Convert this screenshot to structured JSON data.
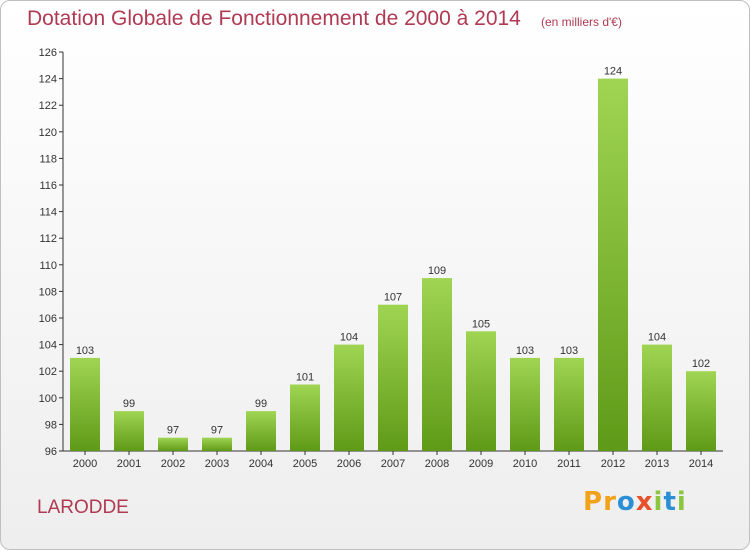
{
  "title": "Dotation Globale de Fonctionnement de 2000 à 2014",
  "subtitle": "(en milliers d'€)",
  "commune": "LARODDE",
  "logo": {
    "letters": [
      "P",
      "r",
      "o",
      "x",
      "i",
      "t",
      "i"
    ],
    "colors": [
      "#f2a21a",
      "#f2a21a",
      "#2b8fd6",
      "#e8502a",
      "#8cc63f",
      "#2b8fd6",
      "#8cc63f"
    ]
  },
  "colors": {
    "bar_top": "#9fd552",
    "bar_bottom": "#5f9a17",
    "title": "#b03a52",
    "grid": "#d9d9d9"
  },
  "chart_data": {
    "type": "bar",
    "categories": [
      "2000",
      "2001",
      "2002",
      "2003",
      "2004",
      "2005",
      "2006",
      "2007",
      "2008",
      "2009",
      "2010",
      "2011",
      "2012",
      "2013",
      "2014"
    ],
    "values": [
      103,
      99,
      97,
      97,
      99,
      101,
      104,
      107,
      109,
      105,
      103,
      103,
      124,
      104,
      102
    ],
    "ylim": [
      96,
      126
    ],
    "yticks": [
      96,
      98,
      100,
      102,
      104,
      106,
      108,
      110,
      112,
      114,
      116,
      118,
      120,
      122,
      124,
      126
    ],
    "grid": false
  }
}
